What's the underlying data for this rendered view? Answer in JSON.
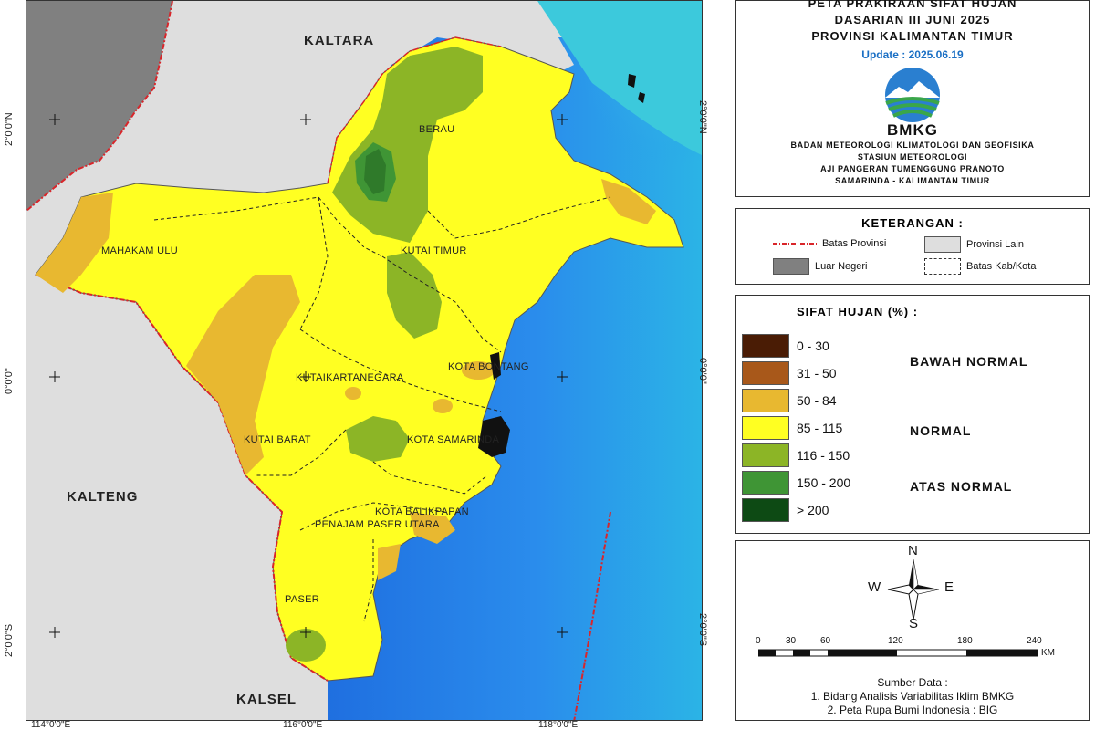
{
  "title": {
    "line1": "PETA PRAKIRAAN SIFAT HUJAN",
    "line2": "DASARIAN III JUNI 2025",
    "line3": "PROVINSI KALIMANTAN TIMUR",
    "update": "Update : 2025.06.19"
  },
  "agency": {
    "logo_text": "BMKG",
    "line1": "BADAN METEOROLOGI KLIMATOLOGI DAN GEOFISIKA",
    "line2": "STASIUN METEOROLOGI",
    "line3": "AJI PANGERAN TUMENGGUNG PRANOTO",
    "line4": "SAMARINDA - KALIMANTAN TIMUR"
  },
  "legend": {
    "heading": "KETERANGAN :",
    "items": [
      {
        "label": "Batas Provinsi",
        "symbol": "red-dash-dot-line"
      },
      {
        "label": "Provinsi Lain",
        "color": "#dedede"
      },
      {
        "label": "Luar Negeri",
        "color": "#808080"
      },
      {
        "label": "Batas Kab/Kota",
        "symbol": "black-dashed-box"
      }
    ]
  },
  "rain_scale": {
    "heading": "SIFAT HUJAN (%) :",
    "classes": [
      {
        "range": "0 - 30",
        "color": "#4a1c05"
      },
      {
        "range": "31 - 50",
        "color": "#a8581a"
      },
      {
        "range": "50 - 84",
        "color": "#e8b830"
      },
      {
        "range": "85 - 115",
        "color": "#ffff22"
      },
      {
        "range": "116 - 150",
        "color": "#8cb526"
      },
      {
        "range": "150 - 200",
        "color": "#3f9535"
      },
      {
        "range": "> 200",
        "color": "#0d4a14"
      }
    ],
    "groups": [
      "BAWAH NORMAL",
      "NORMAL",
      "ATAS NORMAL"
    ]
  },
  "compass": {
    "n": "N",
    "s": "S",
    "e": "E",
    "w": "W"
  },
  "scale_bar": {
    "ticks": [
      "0",
      "30",
      "60",
      "120",
      "180",
      "240"
    ],
    "unit": "KM"
  },
  "source": {
    "heading": "Sumber Data :",
    "line1": "1. Bidang Analisis Variabilitas Iklim BMKG",
    "line2": "2. Peta Rupa Bumi Indonesia : BIG"
  },
  "map": {
    "regions": {
      "kaltara": "KALTARA",
      "kalteng": "KALTENG",
      "kalsel": "KALSEL",
      "berau": "BERAU",
      "mahakam_ulu": "MAHAKAM ULU",
      "kutai_timur": "KUTAI TIMUR",
      "kota_bontang": "KOTA BONTANG",
      "kutai_kartanegara": "KUTAIKARTANEGARA",
      "kutai_barat": "KUTAI BARAT",
      "kota_samarinda": "KOTA SAMARINDA",
      "kota_balikpapan": "KOTA BALIKPAPAN",
      "penajam_paser_utara": "PENAJAM PASER UTARA",
      "paser": "PASER"
    },
    "lat_labels": {
      "n2": "2°0'0\"N",
      "eq": "0°0'0\"",
      "s2": "2°0'0\"S"
    },
    "lon_labels": {
      "e114": "114°0'0\"E",
      "e116": "116°0'0\"E",
      "e118": "118°0'0\"E"
    },
    "colors": {
      "ocean_deep": "#1f7ee6",
      "ocean_shallow": "#35c6e6",
      "other_province": "#dedede",
      "foreign": "#808080",
      "province_border": "#d9252a"
    }
  }
}
